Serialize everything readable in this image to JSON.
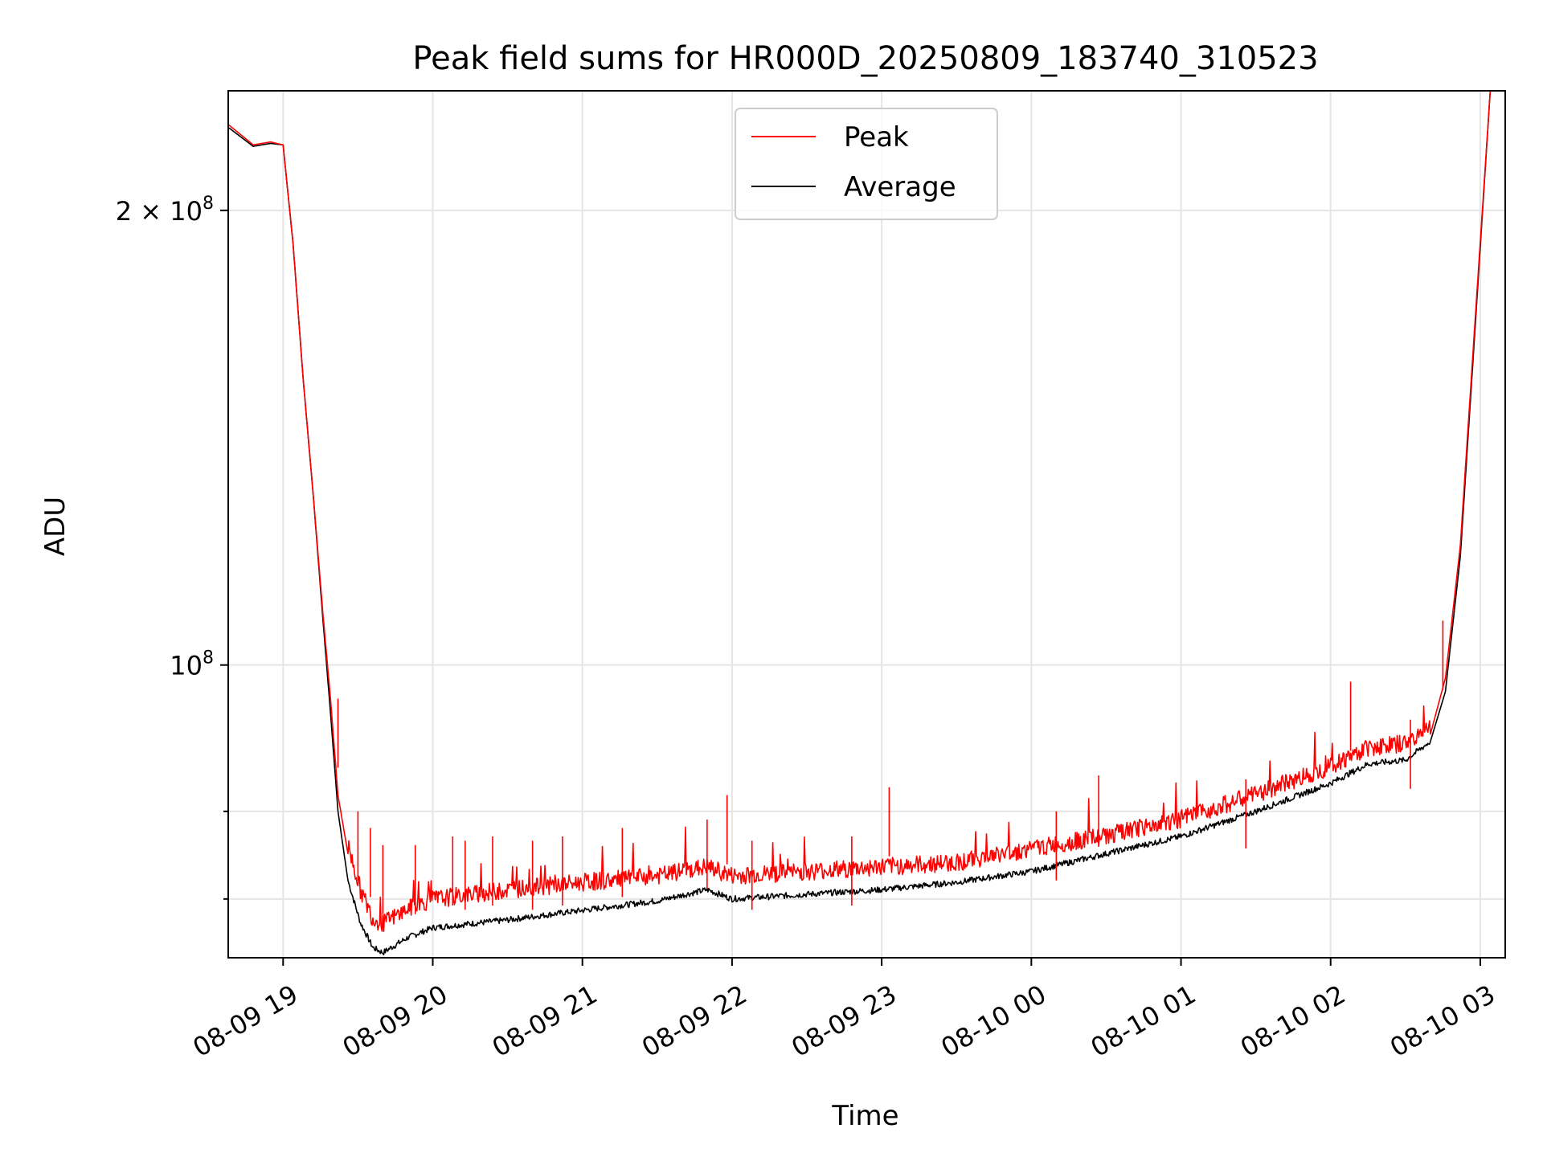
{
  "chart_data": {
    "type": "line",
    "title": "Peak field sums for HR000D_20250809_183740_310523",
    "xlabel": "Time",
    "ylabel": "ADU",
    "yscale": "log",
    "ylim": [
      64000000,
      240000000
    ],
    "xlim": [
      "2025-08-09 18:38",
      "2025-08-10 03:10"
    ],
    "grid": true,
    "legend_position": "upper center",
    "x_ticks": [
      {
        "t": "2025-08-09 19:00",
        "label": "08-09 19"
      },
      {
        "t": "2025-08-09 20:00",
        "label": "08-09 20"
      },
      {
        "t": "2025-08-09 21:00",
        "label": "08-09 21"
      },
      {
        "t": "2025-08-09 22:00",
        "label": "08-09 22"
      },
      {
        "t": "2025-08-09 23:00",
        "label": "08-09 23"
      },
      {
        "t": "2025-08-10 00:00",
        "label": "08-10 00"
      },
      {
        "t": "2025-08-10 01:00",
        "label": "08-10 01"
      },
      {
        "t": "2025-08-10 02:00",
        "label": "08-10 02"
      },
      {
        "t": "2025-08-10 03:00",
        "label": "08-10 03"
      }
    ],
    "y_ticks": [
      {
        "v": 100000000,
        "base": "10",
        "exp": "8",
        "coef": ""
      },
      {
        "v": 200000000,
        "base": "10",
        "exp": "8",
        "coef": "2 × "
      }
    ],
    "y_minor_ticks": [
      70000000,
      80000000
    ],
    "series": [
      {
        "name": "Peak",
        "color": "#ff0000",
        "points": [
          [
            "2025-08-09 18:38",
            228000000
          ],
          [
            "2025-08-09 18:48",
            221000000
          ],
          [
            "2025-08-09 18:55",
            222000000
          ],
          [
            "2025-08-09 19:00",
            221000000
          ],
          [
            "2025-08-09 19:04",
            190000000
          ],
          [
            "2025-08-09 19:08",
            155000000
          ],
          [
            "2025-08-09 19:12",
            130000000
          ],
          [
            "2025-08-09 19:16",
            108000000
          ],
          [
            "2025-08-09 19:19",
            95000000
          ],
          [
            "2025-08-09 19:22",
            82000000
          ],
          [
            "2025-08-09 19:26",
            75000000
          ],
          [
            "2025-08-09 19:31",
            70000000
          ],
          [
            "2025-08-09 19:36",
            67000000
          ],
          [
            "2025-08-09 19:40",
            66500000
          ],
          [
            "2025-08-09 19:50",
            68000000
          ],
          [
            "2025-08-09 20:00",
            69000000
          ],
          [
            "2025-08-09 20:30",
            70000000
          ],
          [
            "2025-08-09 21:00",
            70800000
          ],
          [
            "2025-08-09 21:30",
            71500000
          ],
          [
            "2025-08-09 21:50",
            72500000
          ],
          [
            "2025-08-09 22:00",
            71500000
          ],
          [
            "2025-08-09 22:30",
            72000000
          ],
          [
            "2025-08-09 23:00",
            72500000
          ],
          [
            "2025-08-09 23:30",
            73000000
          ],
          [
            "2025-08-10 00:00",
            74500000
          ],
          [
            "2025-08-10 00:30",
            76000000
          ],
          [
            "2025-08-10 01:00",
            78000000
          ],
          [
            "2025-08-10 01:30",
            81000000
          ],
          [
            "2025-08-10 02:00",
            84500000
          ],
          [
            "2025-08-10 02:15",
            87000000
          ],
          [
            "2025-08-10 02:30",
            87500000
          ],
          [
            "2025-08-10 02:40",
            90000000
          ],
          [
            "2025-08-10 02:46",
            98000000
          ],
          [
            "2025-08-10 02:52",
            120000000
          ],
          [
            "2025-08-10 02:58",
            170000000
          ],
          [
            "2025-08-10 03:04",
            240000000
          ]
        ],
        "spikes": [
          [
            "2025-08-09 19:22",
            95000000
          ],
          [
            "2025-08-09 19:30",
            80000000
          ],
          [
            "2025-08-09 19:35",
            78000000
          ],
          [
            "2025-08-09 19:40",
            76000000
          ],
          [
            "2025-08-09 19:53",
            76000000
          ],
          [
            "2025-08-09 20:08",
            77000000
          ],
          [
            "2025-08-09 20:13",
            76500000
          ],
          [
            "2025-08-09 20:24",
            77000000
          ],
          [
            "2025-08-09 20:40",
            76500000
          ],
          [
            "2025-08-09 20:52",
            77000000
          ],
          [
            "2025-08-09 21:16",
            78000000
          ],
          [
            "2025-08-09 21:50",
            79000000
          ],
          [
            "2025-08-09 21:58",
            82000000
          ],
          [
            "2025-08-09 22:08",
            76500000
          ],
          [
            "2025-08-09 22:48",
            77000000
          ],
          [
            "2025-08-09 23:03",
            83000000
          ],
          [
            "2025-08-10 00:10",
            80000000
          ],
          [
            "2025-08-10 00:27",
            84500000
          ],
          [
            "2025-08-10 01:26",
            84000000
          ],
          [
            "2025-08-10 02:08",
            97500000
          ],
          [
            "2025-08-10 02:32",
            92000000
          ],
          [
            "2025-08-10 02:45",
            107000000
          ]
        ]
      },
      {
        "name": "Average",
        "color": "#000000",
        "points": [
          [
            "2025-08-09 18:38",
            227000000
          ],
          [
            "2025-08-09 18:48",
            220500000
          ],
          [
            "2025-08-09 18:55",
            221500000
          ],
          [
            "2025-08-09 19:00",
            221000000
          ],
          [
            "2025-08-09 19:04",
            190000000
          ],
          [
            "2025-08-09 19:08",
            155000000
          ],
          [
            "2025-08-09 19:12",
            130000000
          ],
          [
            "2025-08-09 19:16",
            107000000
          ],
          [
            "2025-08-09 19:19",
            93000000
          ],
          [
            "2025-08-09 19:22",
            80000000
          ],
          [
            "2025-08-09 19:26",
            72000000
          ],
          [
            "2025-08-09 19:31",
            67500000
          ],
          [
            "2025-08-09 19:36",
            65000000
          ],
          [
            "2025-08-09 19:40",
            64500000
          ],
          [
            "2025-08-09 19:50",
            66000000
          ],
          [
            "2025-08-09 20:00",
            67000000
          ],
          [
            "2025-08-09 20:30",
            67800000
          ],
          [
            "2025-08-09 21:00",
            68800000
          ],
          [
            "2025-08-09 21:30",
            69800000
          ],
          [
            "2025-08-09 21:50",
            71000000
          ],
          [
            "2025-08-09 22:00",
            70000000
          ],
          [
            "2025-08-09 22:30",
            70500000
          ],
          [
            "2025-08-09 23:00",
            71000000
          ],
          [
            "2025-08-09 23:30",
            71800000
          ],
          [
            "2025-08-10 00:00",
            73000000
          ],
          [
            "2025-08-10 00:30",
            75000000
          ],
          [
            "2025-08-10 01:00",
            77000000
          ],
          [
            "2025-08-10 01:30",
            80000000
          ],
          [
            "2025-08-10 02:00",
            83500000
          ],
          [
            "2025-08-10 02:15",
            86000000
          ],
          [
            "2025-08-10 02:30",
            86500000
          ],
          [
            "2025-08-10 02:40",
            89000000
          ],
          [
            "2025-08-10 02:46",
            96000000
          ],
          [
            "2025-08-10 02:52",
            118000000
          ],
          [
            "2025-08-10 02:58",
            168000000
          ],
          [
            "2025-08-10 03:04",
            240000000
          ]
        ]
      }
    ]
  }
}
